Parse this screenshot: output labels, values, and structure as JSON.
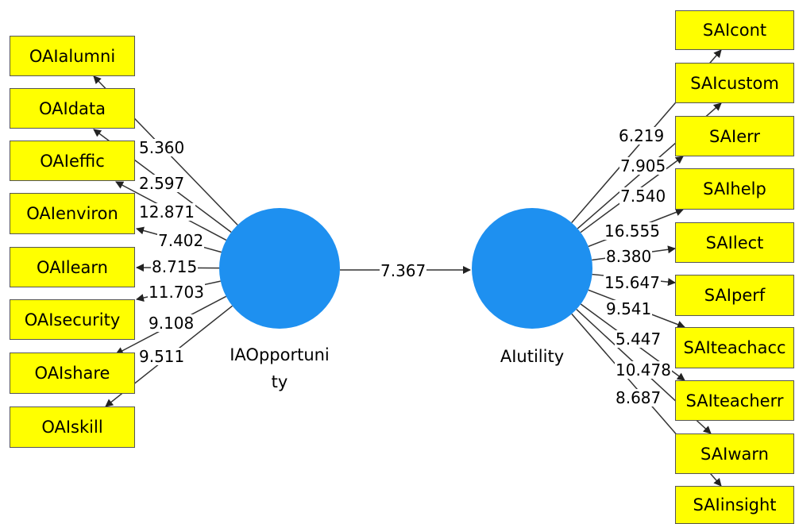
{
  "colors": {
    "node": "#1e90f0",
    "indicator": "#ffff00",
    "line": "#333333"
  },
  "constructs": {
    "left": {
      "label_line1": "IAOpportuni",
      "label_line2": "ty"
    },
    "right": {
      "label": "AIutility"
    }
  },
  "path": {
    "weight": "7.367"
  },
  "left_indicators": [
    {
      "name": "OAIalumni",
      "weight": "5.360"
    },
    {
      "name": "OAIdata",
      "weight": "2.597"
    },
    {
      "name": "OAIeffic",
      "weight": "12.871"
    },
    {
      "name": "OAIenviron",
      "weight": "7.402"
    },
    {
      "name": "OAIlearn",
      "weight": "8.715"
    },
    {
      "name": "OAIsecurity",
      "weight": "11.703"
    },
    {
      "name": "OAIshare",
      "weight": "9.108"
    },
    {
      "name": "OAIskill",
      "weight": "9.511"
    }
  ],
  "right_indicators": [
    {
      "name": "SAIcont",
      "weight": "6.219"
    },
    {
      "name": "SAIcustom",
      "weight": "7.905"
    },
    {
      "name": "SAIerr",
      "weight": "7.540"
    },
    {
      "name": "SAIhelp",
      "weight": "16.555"
    },
    {
      "name": "SAIlect",
      "weight": "8.380"
    },
    {
      "name": "SAIperf",
      "weight": "15.647"
    },
    {
      "name": "SAIteachacc",
      "weight": "9.541"
    },
    {
      "name": "SAIteacherr",
      "weight": "5.447"
    },
    {
      "name": "SAIwarn",
      "weight": "10.478"
    },
    {
      "name": "SAIinsight",
      "weight": "8.687"
    }
  ]
}
